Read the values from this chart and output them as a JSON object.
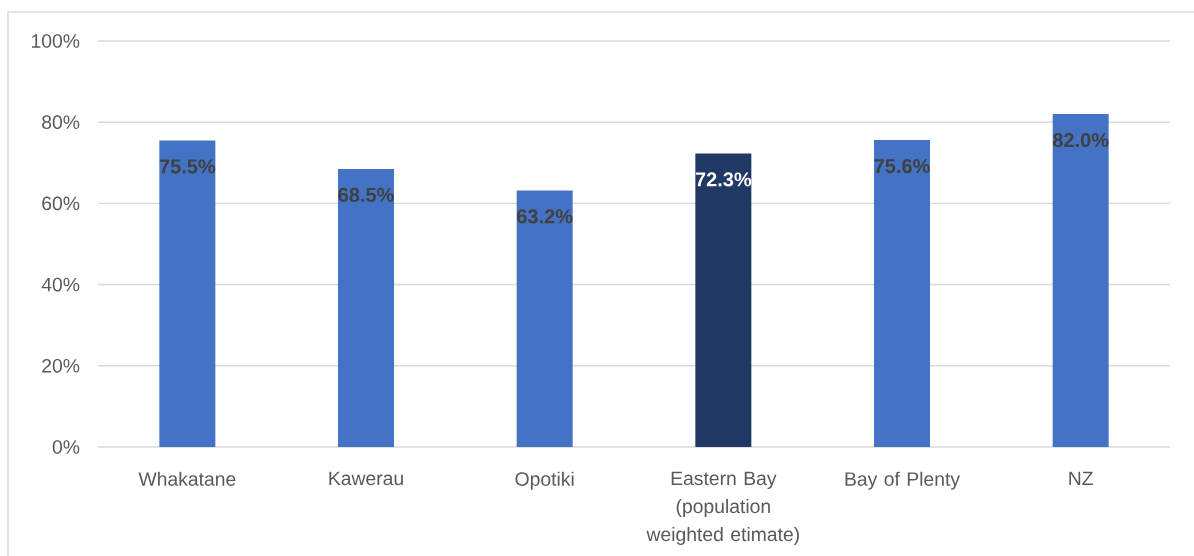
{
  "chart_data": {
    "type": "bar",
    "categories": [
      "Whakatane",
      "Kawerau",
      "Opotiki",
      "Eastern Bay (population weighted etimate)",
      "Bay of Plenty",
      "NZ"
    ],
    "values": [
      75.5,
      68.5,
      63.2,
      72.3,
      75.6,
      82.0
    ],
    "colors": [
      "#4472c4",
      "#4472c4",
      "#4472c4",
      "#203864",
      "#4472c4",
      "#4472c4"
    ],
    "value_labels": [
      "75.5%",
      "68.5%",
      "63.2%",
      "72.3%",
      "75.6%",
      "82.0%"
    ],
    "ylim": [
      0,
      100
    ],
    "yticks": [
      {
        "value": 0,
        "label": "0%"
      },
      {
        "value": 20,
        "label": "20%"
      },
      {
        "value": 40,
        "label": "40%"
      },
      {
        "value": 60,
        "label": "60%"
      },
      {
        "value": 80,
        "label": "80%"
      },
      {
        "value": 100,
        "label": "100%"
      }
    ],
    "grid": "y"
  }
}
